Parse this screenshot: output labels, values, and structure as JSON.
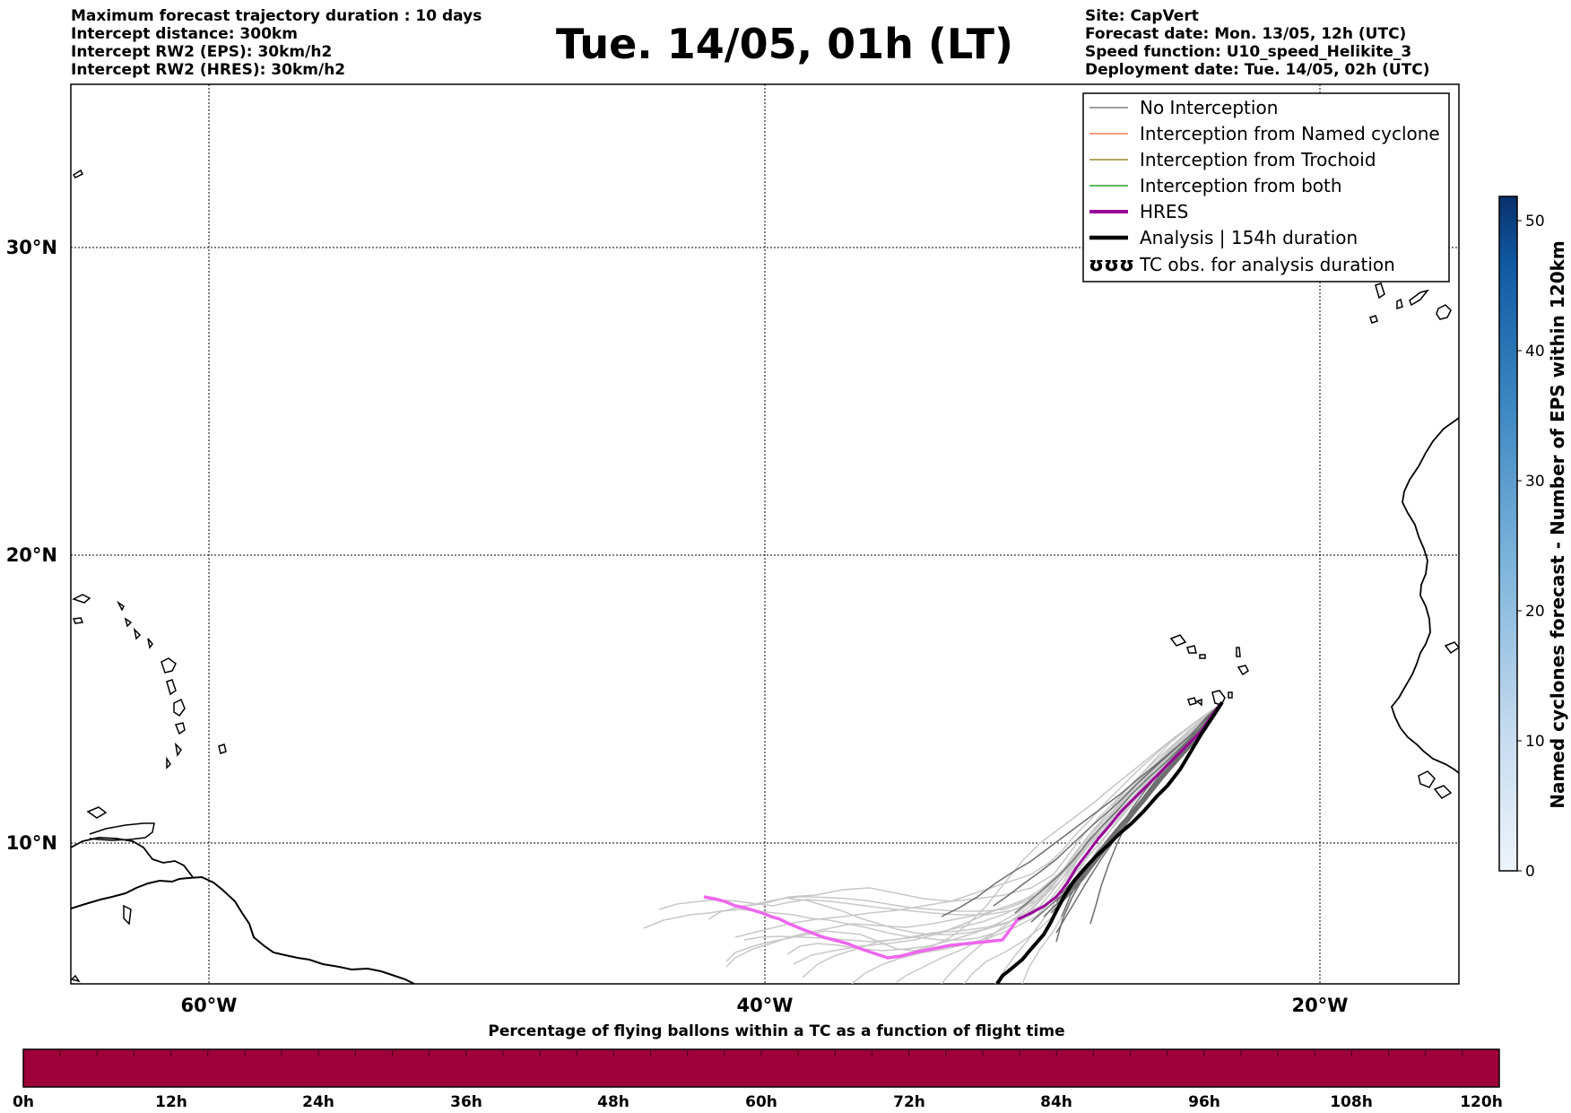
{
  "title": "Tue. 14/05, 01h (LT)",
  "info_left": [
    "Maximum forecast trajectory duration : 10 days",
    "Intercept distance: 300km",
    "Intercept RW2 (EPS):  30km/h2",
    "Intercept RW2 (HRES): 30km/h2"
  ],
  "info_right": [
    "Site: CapVert",
    "Forecast date: Mon. 13/05, 12h (UTC)",
    "Speed function: U10_speed_Helikite_3",
    "Deployment date: Tue. 14/05, 02h (UTC)"
  ],
  "map": {
    "lon_labels": [
      "60°W",
      "40°W",
      "20°W"
    ],
    "lat_labels": [
      "30°N",
      "20°N",
      "10°N"
    ]
  },
  "legend": [
    {
      "label": "No Interception",
      "color": "#808080"
    },
    {
      "label": "Interception from Named cyclone",
      "color": "#ff7f50"
    },
    {
      "label": "Interception from Trochoid",
      "color": "#9a8a30"
    },
    {
      "label": "Interception from both",
      "color": "#2ca02c"
    },
    {
      "label": "HRES",
      "color": "#990099"
    },
    {
      "label": "Analysis | 154h duration",
      "color": "#000000"
    },
    {
      "label": "TC obs. for analysis duration",
      "symbol": "ʊʊʊ"
    }
  ],
  "colorbar_right": {
    "label": "Named cyclones forecast - Number of EPS within 120km",
    "ticks": [
      "0",
      "10",
      "20",
      "30",
      "40",
      "50"
    ]
  },
  "colorbar_bottom": {
    "title": "Percentage of flying ballons within a TC as a function of flight time",
    "ticks": [
      "0h",
      "12h",
      "24h",
      "36h",
      "48h",
      "60h",
      "72h",
      "84h",
      "96h",
      "108h",
      "120h"
    ],
    "color": "#9e003a"
  }
}
